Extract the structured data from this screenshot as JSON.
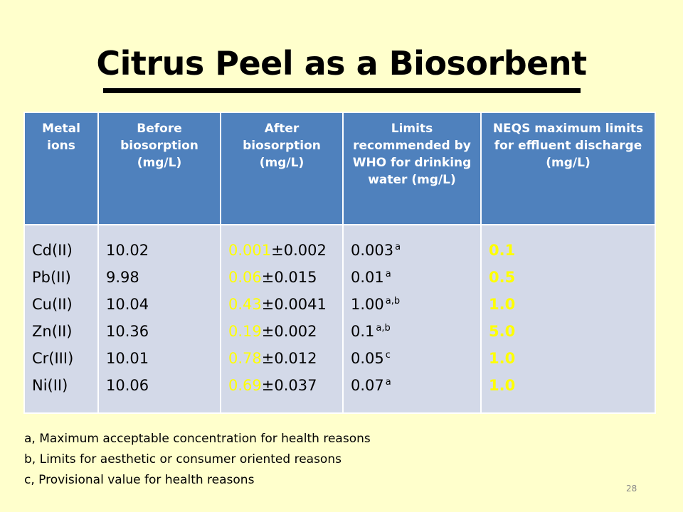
{
  "slide": {
    "title": "Citrus Peel as a Biosorbent",
    "page_number": "28"
  },
  "table": {
    "headers": [
      "Metal ions",
      "Before biosorption (mg/L)",
      "After biosorption (mg/L)",
      "Limits recommended by WHO for drinking water (mg/L)",
      "NEQS maximum limits for effluent discharge (mg/L)"
    ],
    "rows": [
      {
        "ion": "Cd(II)",
        "before": "10.02",
        "after_value": "0.001",
        "after_error": "±0.002",
        "who": "0.003",
        "who_note": "a",
        "neqs": "0.1"
      },
      {
        "ion": "Pb(II)",
        "before": "9.98",
        "after_value": "0.06",
        "after_error": "±0.015",
        "who": "0.01",
        "who_note": "a",
        "neqs": "0.5"
      },
      {
        "ion": "Cu(II)",
        "before": "10.04",
        "after_value": "0.43",
        "after_error": "±0.0041",
        "who": "1.00",
        "who_note": "a,b",
        "neqs": "1.0"
      },
      {
        "ion": "Zn(II)",
        "before": "10.36",
        "after_value": "0.19",
        "after_error": "±0.002",
        "who": "0.1",
        "who_note": "a,b",
        "neqs": "5.0"
      },
      {
        "ion": "Cr(III)",
        "before": "10.01",
        "after_value": "0.78",
        "after_error": "±0.012",
        "who": "0.05",
        "who_note": "c",
        "neqs": "1.0"
      },
      {
        "ion": "Ni(II)",
        "before": "10.06",
        "after_value": "0.69",
        "after_error": "±0.037",
        "who": "0.07",
        "who_note": "a",
        "neqs": "1.0"
      }
    ]
  },
  "footnotes": [
    "a, Maximum acceptable concentration for health reasons",
    "b, Limits for aesthetic or consumer oriented reasons",
    "c, Provisional value for health reasons"
  ],
  "colors": {
    "background": "#ffffcc",
    "header_fill": "#4f81bd",
    "body_fill": "#d3d9e8",
    "highlight": "#ffff00"
  }
}
